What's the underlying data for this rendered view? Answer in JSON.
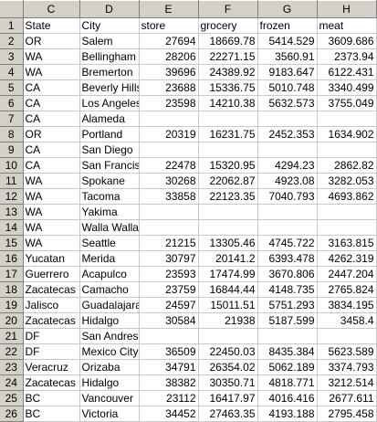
{
  "columns": [
    "C",
    "D",
    "E",
    "F",
    "G",
    "H"
  ],
  "rows": [
    {
      "n": "1",
      "cells": [
        "State",
        "City",
        "store",
        "grocery",
        "frozen",
        "meat"
      ]
    },
    {
      "n": "2",
      "cells": [
        "OR",
        "Salem",
        "27694",
        "18669.78",
        "5414.529",
        "3609.686"
      ]
    },
    {
      "n": "3",
      "cells": [
        "WA",
        "Bellingham",
        "28206",
        "22271.15",
        "3560.91",
        "2373.94"
      ]
    },
    {
      "n": "4",
      "cells": [
        "WA",
        "Bremerton",
        "39696",
        "24389.92",
        "9183.647",
        "6122.431"
      ]
    },
    {
      "n": "5",
      "cells": [
        "CA",
        "Beverly Hills",
        "23688",
        "15336.75",
        "5010.748",
        "3340.499"
      ]
    },
    {
      "n": "6",
      "cells": [
        "CA",
        "Los Angeles",
        "23598",
        "14210.38",
        "5632.573",
        "3755.049"
      ]
    },
    {
      "n": "7",
      "cells": [
        "CA",
        "Alameda",
        "",
        "",
        "",
        ""
      ]
    },
    {
      "n": "8",
      "cells": [
        "OR",
        "Portland",
        "20319",
        "16231.75",
        "2452.353",
        "1634.902"
      ]
    },
    {
      "n": "9",
      "cells": [
        "CA",
        "San Diego",
        "",
        "",
        "",
        ""
      ]
    },
    {
      "n": "10",
      "cells": [
        "CA",
        "San Francisco",
        "22478",
        "15320.95",
        "4294.23",
        "2862.82"
      ]
    },
    {
      "n": "11",
      "cells": [
        "WA",
        "Spokane",
        "30268",
        "22062.87",
        "4923.08",
        "3282.053"
      ]
    },
    {
      "n": "12",
      "cells": [
        "WA",
        "Tacoma",
        "33858",
        "22123.35",
        "7040.793",
        "4693.862"
      ]
    },
    {
      "n": "13",
      "cells": [
        "WA",
        "Yakima",
        "",
        "",
        "",
        ""
      ]
    },
    {
      "n": "14",
      "cells": [
        "WA",
        "Walla Walla",
        "",
        "",
        "",
        ""
      ]
    },
    {
      "n": "15",
      "cells": [
        "WA",
        "Seattle",
        "21215",
        "13305.46",
        "4745.722",
        "3163.815"
      ]
    },
    {
      "n": "16",
      "cells": [
        "Yucatan",
        "Merida",
        "30797",
        "20141.2",
        "6393.478",
        "4262.319"
      ]
    },
    {
      "n": "17",
      "cells": [
        "Guerrero",
        "Acapulco",
        "23593",
        "17474.99",
        "3670.806",
        "2447.204"
      ]
    },
    {
      "n": "18",
      "cells": [
        "Zacatecas",
        "Camacho",
        "23759",
        "16844.44",
        "4148.735",
        "2765.824"
      ]
    },
    {
      "n": "19",
      "cells": [
        "Jalisco",
        "Guadalajara",
        "24597",
        "15011.51",
        "5751.293",
        "3834.195"
      ]
    },
    {
      "n": "20",
      "cells": [
        "Zacatecas",
        "Hidalgo",
        "30584",
        "21938",
        "5187.599",
        "3458.4"
      ]
    },
    {
      "n": "21",
      "cells": [
        "DF",
        "San Andres",
        "",
        "",
        "",
        ""
      ]
    },
    {
      "n": "22",
      "cells": [
        "DF",
        "Mexico City",
        "36509",
        "22450.03",
        "8435.384",
        "5623.589"
      ]
    },
    {
      "n": "23",
      "cells": [
        "Veracruz",
        "Orizaba",
        "34791",
        "26354.02",
        "5062.189",
        "3374.793"
      ]
    },
    {
      "n": "24",
      "cells": [
        "Zacatecas",
        "Hidalgo",
        "38382",
        "30350.71",
        "4818.771",
        "3212.514"
      ]
    },
    {
      "n": "25",
      "cells": [
        "BC",
        "Vancouver",
        "23112",
        "16417.97",
        "4016.416",
        "2677.611"
      ]
    },
    {
      "n": "26",
      "cells": [
        "BC",
        "Victoria",
        "34452",
        "27463.35",
        "4193.188",
        "2795.458"
      ]
    }
  ]
}
